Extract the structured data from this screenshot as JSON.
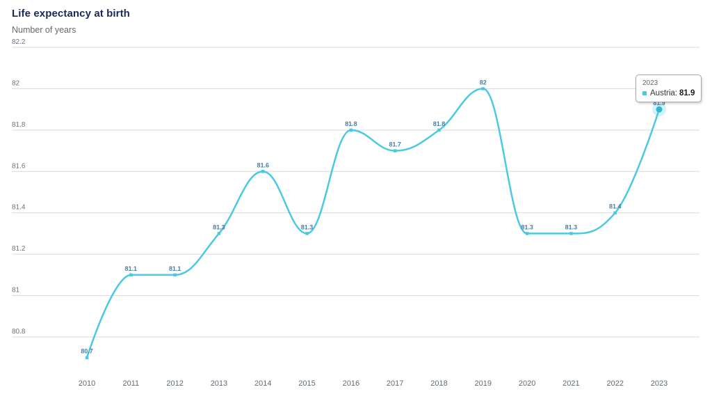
{
  "header": {
    "title": "Life expectancy at birth",
    "subtitle": "Number of years"
  },
  "tooltip": {
    "year": "2023",
    "series_label": "Austria:",
    "value": "81.9"
  },
  "chart_data": {
    "type": "line",
    "line_shape": "spline",
    "title": "Life expectancy at birth",
    "subtitle": "Number of years",
    "categories": [
      "2010",
      "2011",
      "2012",
      "2013",
      "2014",
      "2015",
      "2016",
      "2017",
      "2018",
      "2019",
      "2020",
      "2021",
      "2022",
      "2023"
    ],
    "series": [
      {
        "name": "Austria",
        "values": [
          80.7,
          81.1,
          81.1,
          81.3,
          81.6,
          81.3,
          81.8,
          81.7,
          81.8,
          82,
          81.3,
          81.3,
          81.4,
          81.9
        ]
      }
    ],
    "data_labels": [
      "80.7",
      "81.1",
      "81.1",
      "81.3",
      "81.6",
      "81.3",
      "81.8",
      "81.7",
      "81.8",
      "82",
      "81.3",
      "81.3",
      "81.4",
      "81.9"
    ],
    "y_ticks": [
      82.2,
      82,
      81.8,
      81.6,
      81.4,
      81.2,
      81,
      80.8
    ],
    "ylim": [
      80.6,
      82.2
    ],
    "xlabel": "",
    "ylabel": "",
    "grid": "horizontal-only",
    "legend": "none",
    "highlighted_point": {
      "category": "2023",
      "value": 81.9
    }
  },
  "colors": {
    "line": "#4ac9e3",
    "marker": "#4ac9e3",
    "highlight_dot": "#2fb9d6",
    "halo_opacity": "0.25",
    "data_label": "#4a7ea3",
    "grid": "#d9d9d9",
    "title": "#18295b",
    "subtitle": "#696969",
    "y_axis_label": "#6a747e",
    "x_axis_label": "#5e6a75",
    "tooltip_border": "#a8a8a8"
  }
}
